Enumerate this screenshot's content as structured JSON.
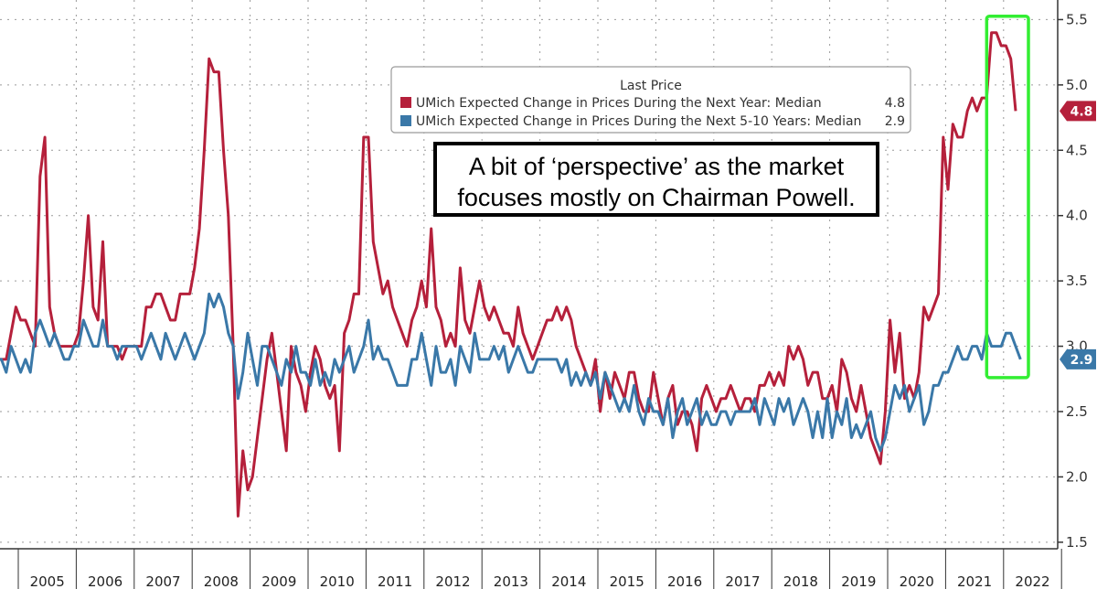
{
  "chart_data": {
    "type": "line",
    "x_start": "2004-10",
    "x_labels": [
      "2005",
      "2006",
      "2007",
      "2008",
      "2009",
      "2010",
      "2011",
      "2012",
      "2013",
      "2014",
      "2015",
      "2016",
      "2017",
      "2018",
      "2019",
      "2020",
      "2021",
      "2022"
    ],
    "yticks": [
      "1.5",
      "2.0",
      "2.5",
      "3.0",
      "3.5",
      "4.0",
      "4.5",
      "5.0",
      "5.5"
    ],
    "ylim": [
      1.45,
      5.65
    ],
    "grid": true,
    "legend": {
      "title": "Last Price",
      "placement": "top-center",
      "entries": [
        {
          "label": "UMich Expected Change in Prices During the Next Year: Median",
          "last": "4.8",
          "color": "#b5203b"
        },
        {
          "label": "UMich Expected Change in Prices During the Next 5-10 Years: Median",
          "last": "2.9",
          "color": "#3a78a8"
        }
      ]
    },
    "series": [
      {
        "name": "UMich Expected Change in Prices During the Next Year: Median",
        "color": "#b5203b",
        "last_label": "4.8",
        "values": [
          3.1,
          2.9,
          2.8,
          3.0,
          2.9,
          2.9,
          2.9,
          3.1,
          3.3,
          3.2,
          3.2,
          3.1,
          3.0,
          4.3,
          4.6,
          3.3,
          3.1,
          3.0,
          3.0,
          3.0,
          3.0,
          3.1,
          3.5,
          4.0,
          3.3,
          3.2,
          3.8,
          3.0,
          3.0,
          3.0,
          2.9,
          3.0,
          3.0,
          3.0,
          3.0,
          3.3,
          3.3,
          3.4,
          3.4,
          3.3,
          3.2,
          3.2,
          3.4,
          3.4,
          3.4,
          3.6,
          3.9,
          4.5,
          5.2,
          5.1,
          5.1,
          4.5,
          4.0,
          3.0,
          1.7,
          2.2,
          1.9,
          2.0,
          2.3,
          2.6,
          2.9,
          3.1,
          2.8,
          2.5,
          2.2,
          3.0,
          2.8,
          2.7,
          2.5,
          2.8,
          3.0,
          2.9,
          2.7,
          2.6,
          2.7,
          2.2,
          3.1,
          3.2,
          3.4,
          3.4,
          4.6,
          4.6,
          3.8,
          3.6,
          3.4,
          3.5,
          3.3,
          3.2,
          3.1,
          3.0,
          3.2,
          3.3,
          3.5,
          3.3,
          3.9,
          3.3,
          3.2,
          3.0,
          3.1,
          3.0,
          3.6,
          3.2,
          3.1,
          3.3,
          3.5,
          3.3,
          3.2,
          3.3,
          3.2,
          3.1,
          3.1,
          3.0,
          3.3,
          3.1,
          3.0,
          2.9,
          3.0,
          3.1,
          3.2,
          3.2,
          3.3,
          3.2,
          3.3,
          3.2,
          3.0,
          2.9,
          2.8,
          2.7,
          2.9,
          2.5,
          2.8,
          2.6,
          2.8,
          2.7,
          2.6,
          2.8,
          2.8,
          2.6,
          2.5,
          2.5,
          2.8,
          2.6,
          2.4,
          2.6,
          2.7,
          2.4,
          2.5,
          2.5,
          2.4,
          2.2,
          2.6,
          2.7,
          2.6,
          2.5,
          2.6,
          2.6,
          2.7,
          2.6,
          2.5,
          2.6,
          2.6,
          2.5,
          2.7,
          2.7,
          2.8,
          2.7,
          2.8,
          2.7,
          3.0,
          2.9,
          3.0,
          2.9,
          2.7,
          2.8,
          2.8,
          2.6,
          2.6,
          2.7,
          2.5,
          2.9,
          2.8,
          2.6,
          2.5,
          2.7,
          2.5,
          2.3,
          2.2,
          2.1,
          2.5,
          3.2,
          2.8,
          3.1,
          2.6,
          2.7,
          2.6,
          2.8,
          3.3,
          3.2,
          3.3,
          3.4,
          4.6,
          4.2,
          4.7,
          4.6,
          4.6,
          4.8,
          4.9,
          4.8,
          4.9,
          4.9,
          5.4,
          5.4,
          5.3,
          5.3,
          5.2,
          4.8
        ]
      },
      {
        "name": "UMich Expected Change in Prices During the Next 5-10 Years: Median",
        "color": "#3a78a8",
        "last_label": "2.9",
        "values": [
          2.8,
          2.8,
          2.7,
          2.8,
          2.9,
          2.9,
          2.8,
          3.0,
          2.9,
          2.8,
          2.9,
          2.8,
          3.1,
          3.2,
          3.1,
          3.0,
          3.1,
          3.0,
          2.9,
          2.9,
          3.0,
          3.0,
          3.2,
          3.1,
          3.0,
          3.0,
          3.2,
          3.0,
          3.0,
          2.9,
          3.0,
          3.0,
          3.0,
          3.0,
          2.9,
          3.0,
          3.1,
          3.0,
          2.9,
          3.1,
          3.0,
          2.9,
          3.0,
          3.1,
          3.0,
          2.9,
          3.0,
          3.1,
          3.4,
          3.3,
          3.4,
          3.3,
          3.1,
          3.0,
          2.6,
          2.8,
          3.1,
          2.9,
          2.7,
          3.0,
          3.0,
          2.9,
          2.8,
          2.7,
          2.9,
          2.8,
          3.0,
          2.8,
          2.8,
          2.7,
          2.9,
          2.7,
          2.8,
          2.7,
          2.9,
          2.8,
          2.9,
          3.0,
          2.8,
          2.9,
          3.0,
          3.2,
          2.9,
          3.0,
          2.9,
          2.9,
          2.8,
          2.7,
          2.7,
          2.7,
          2.9,
          2.9,
          3.1,
          2.9,
          2.7,
          3.0,
          2.8,
          2.8,
          2.9,
          2.7,
          3.0,
          2.9,
          2.8,
          3.1,
          2.9,
          2.9,
          2.9,
          3.0,
          2.9,
          3.0,
          2.8,
          2.9,
          3.0,
          2.9,
          2.8,
          2.8,
          2.9,
          2.9,
          2.9,
          2.9,
          2.9,
          2.8,
          2.9,
          2.7,
          2.8,
          2.7,
          2.8,
          2.7,
          2.8,
          2.6,
          2.8,
          2.7,
          2.6,
          2.5,
          2.6,
          2.5,
          2.7,
          2.5,
          2.4,
          2.6,
          2.5,
          2.5,
          2.4,
          2.6,
          2.3,
          2.5,
          2.6,
          2.4,
          2.5,
          2.6,
          2.4,
          2.5,
          2.4,
          2.4,
          2.5,
          2.5,
          2.4,
          2.5,
          2.5,
          2.5,
          2.5,
          2.6,
          2.4,
          2.6,
          2.5,
          2.4,
          2.6,
          2.5,
          2.6,
          2.4,
          2.5,
          2.6,
          2.5,
          2.3,
          2.5,
          2.3,
          2.6,
          2.3,
          2.5,
          2.4,
          2.6,
          2.3,
          2.4,
          2.3,
          2.4,
          2.5,
          2.3,
          2.2,
          2.3,
          2.5,
          2.7,
          2.6,
          2.7,
          2.5,
          2.6,
          2.7,
          2.4,
          2.5,
          2.7,
          2.7,
          2.8,
          2.8,
          2.9,
          3.0,
          2.9,
          2.9,
          3.0,
          3.0,
          2.9,
          3.1,
          3.0,
          3.0,
          3.0,
          3.1,
          3.1,
          3.0,
          2.9
        ]
      }
    ]
  },
  "annotation": {
    "line1": "A bit of ‘perspective’ as the market",
    "line2": "focuses mostly on Chairman Powell."
  },
  "colors": {
    "highlight_box": "#33ee33",
    "grid": "#9a9a9a",
    "axis": "#333333"
  }
}
